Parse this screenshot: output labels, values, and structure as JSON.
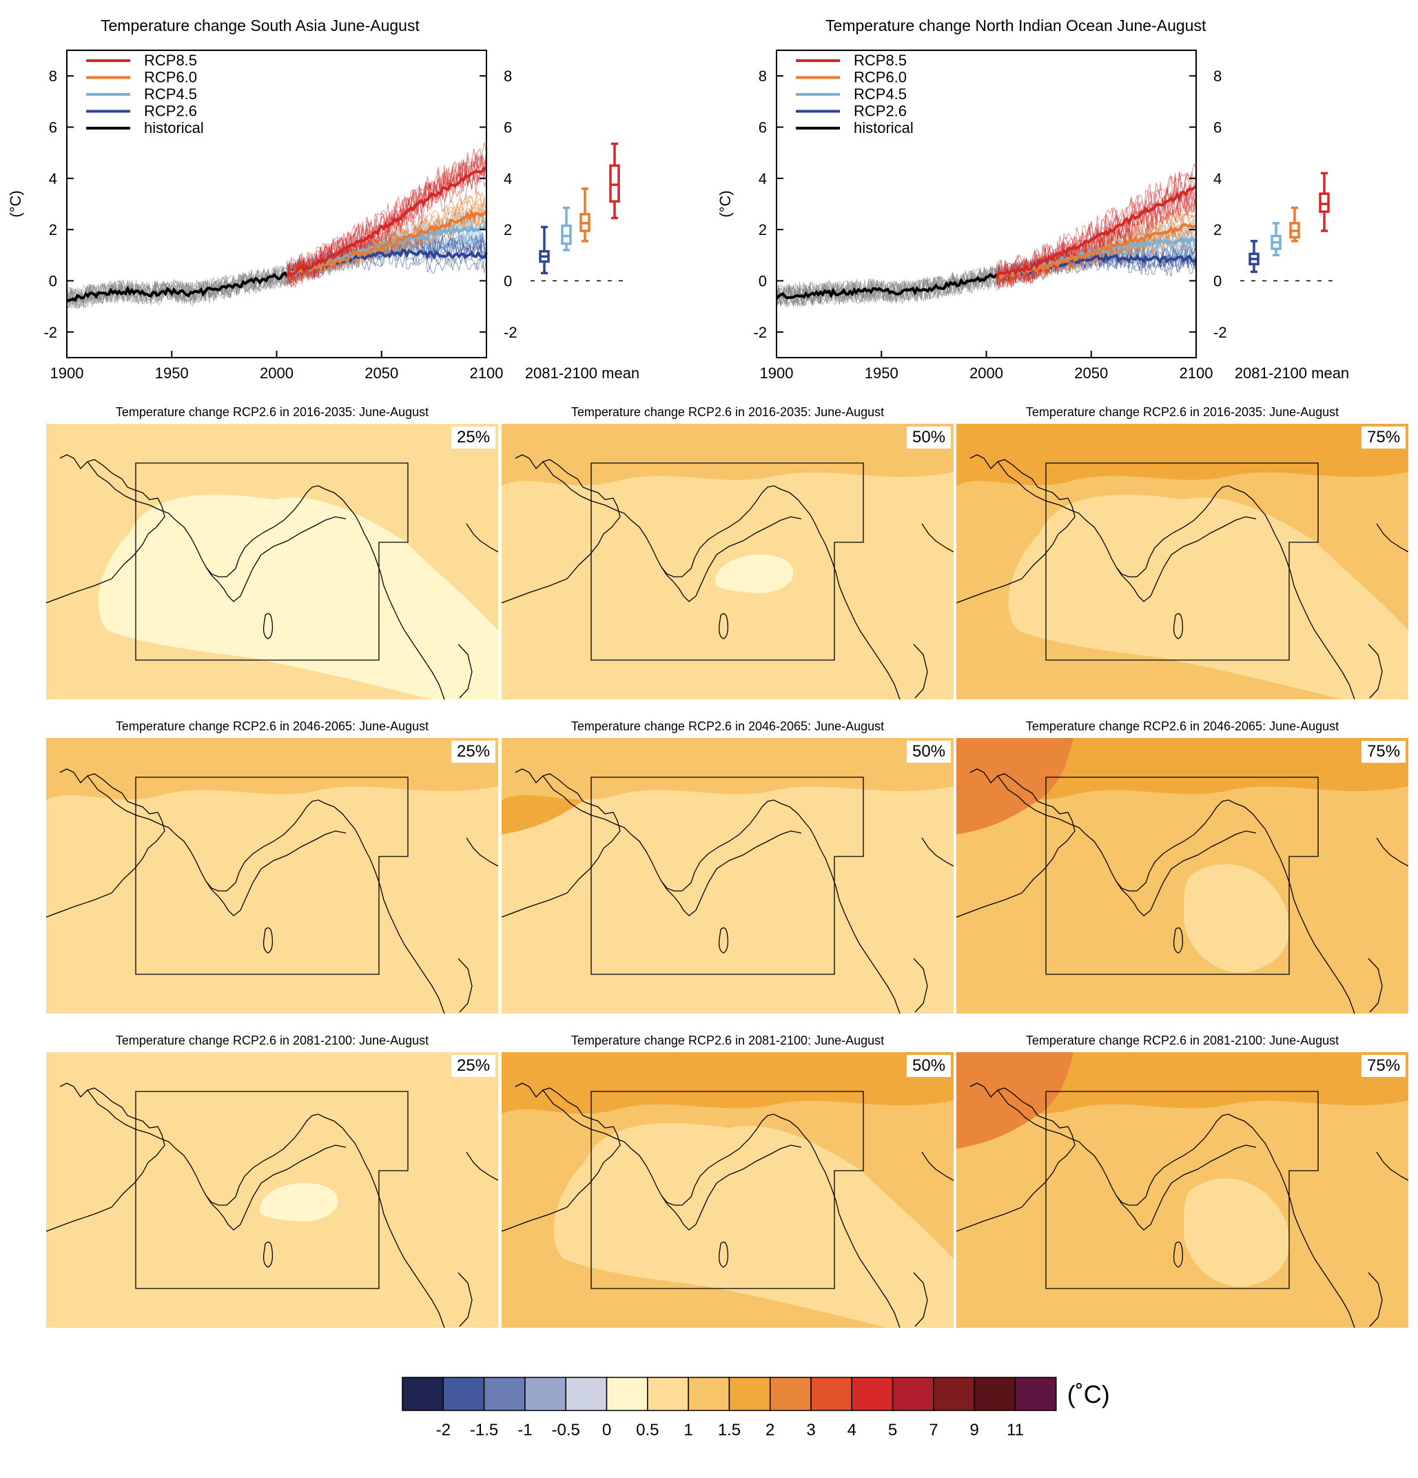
{
  "colors": {
    "rcp85": "#d62728",
    "rcp60": "#e97a2e",
    "rcp45": "#79b0d8",
    "rcp26": "#2d4593",
    "historical": "#000000",
    "hist_spread": "#7f7f7f"
  },
  "chart_data": [
    {
      "type": "line",
      "title": "Temperature change South Asia June-August",
      "ylabel": "(°C)",
      "xlim": [
        1900,
        2100
      ],
      "ylim": [
        -3,
        9
      ],
      "xticks": [
        1900,
        1950,
        2000,
        2050,
        2100
      ],
      "yticks": [
        -2,
        0,
        2,
        4,
        6,
        8
      ],
      "legend": [
        "RCP8.5",
        "RCP6.0",
        "RCP4.5",
        "RCP2.6",
        "historical"
      ],
      "legend_position": "top-left",
      "summary_label": "2081-2100 mean",
      "series": [
        {
          "name": "historical",
          "x": [
            1900,
            1910,
            1920,
            1930,
            1940,
            1950,
            1960,
            1970,
            1980,
            1990,
            2000,
            2005
          ],
          "values": [
            -0.7,
            -0.6,
            -0.45,
            -0.4,
            -0.5,
            -0.4,
            -0.5,
            -0.35,
            -0.2,
            0.0,
            0.15,
            0.25
          ]
        },
        {
          "name": "RCP2.6",
          "x": [
            2005,
            2020,
            2030,
            2040,
            2050,
            2060,
            2070,
            2080,
            2090,
            2100
          ],
          "values": [
            0.25,
            0.55,
            0.8,
            0.95,
            1.05,
            1.1,
            1.05,
            1.0,
            1.0,
            1.0
          ]
        },
        {
          "name": "RCP4.5",
          "x": [
            2005,
            2020,
            2030,
            2040,
            2050,
            2060,
            2070,
            2080,
            2090,
            2100
          ],
          "values": [
            0.25,
            0.6,
            0.85,
            1.1,
            1.35,
            1.55,
            1.75,
            1.9,
            2.0,
            2.05
          ]
        },
        {
          "name": "RCP6.0",
          "x": [
            2005,
            2020,
            2030,
            2040,
            2050,
            2060,
            2070,
            2080,
            2090,
            2100
          ],
          "values": [
            0.25,
            0.55,
            0.8,
            1.05,
            1.3,
            1.6,
            1.9,
            2.2,
            2.5,
            2.7
          ]
        },
        {
          "name": "RCP8.5",
          "x": [
            2005,
            2020,
            2030,
            2040,
            2050,
            2060,
            2070,
            2080,
            2090,
            2100
          ],
          "values": [
            0.25,
            0.7,
            1.1,
            1.55,
            2.05,
            2.55,
            3.1,
            3.6,
            4.0,
            4.35
          ]
        }
      ],
      "boxes_2081_2100": [
        {
          "name": "RCP2.6",
          "min": 0.3,
          "q1": 0.75,
          "median": 0.95,
          "q3": 1.15,
          "max": 2.1
        },
        {
          "name": "RCP4.5",
          "min": 1.2,
          "q1": 1.45,
          "median": 1.75,
          "q3": 2.15,
          "max": 2.85
        },
        {
          "name": "RCP6.0",
          "min": 1.55,
          "q1": 1.95,
          "median": 2.25,
          "q3": 2.6,
          "max": 3.6
        },
        {
          "name": "RCP8.5",
          "min": 2.45,
          "q1": 3.1,
          "median": 3.75,
          "q3": 4.5,
          "max": 5.35
        }
      ]
    },
    {
      "type": "line",
      "title": "Temperature change North Indian Ocean June-August",
      "ylabel": "(°C)",
      "xlim": [
        1900,
        2100
      ],
      "ylim": [
        -3,
        9
      ],
      "xticks": [
        1900,
        1950,
        2000,
        2050,
        2100
      ],
      "yticks": [
        -2,
        0,
        2,
        4,
        6,
        8
      ],
      "legend": [
        "RCP8.5",
        "RCP6.0",
        "RCP4.5",
        "RCP2.6",
        "historical"
      ],
      "legend_position": "top-left",
      "summary_label": "2081-2100 mean",
      "series": [
        {
          "name": "historical",
          "x": [
            1900,
            1910,
            1920,
            1930,
            1940,
            1950,
            1960,
            1970,
            1980,
            1990,
            2000,
            2005
          ],
          "values": [
            -0.6,
            -0.55,
            -0.5,
            -0.45,
            -0.4,
            -0.4,
            -0.45,
            -0.35,
            -0.2,
            -0.05,
            0.1,
            0.2
          ]
        },
        {
          "name": "RCP2.6",
          "x": [
            2005,
            2020,
            2030,
            2040,
            2050,
            2060,
            2070,
            2080,
            2090,
            2100
          ],
          "values": [
            0.2,
            0.4,
            0.6,
            0.75,
            0.85,
            0.9,
            0.85,
            0.85,
            0.85,
            0.85
          ]
        },
        {
          "name": "RCP4.5",
          "x": [
            2005,
            2020,
            2030,
            2040,
            2050,
            2060,
            2070,
            2080,
            2090,
            2100
          ],
          "values": [
            0.2,
            0.45,
            0.7,
            0.9,
            1.1,
            1.25,
            1.4,
            1.5,
            1.55,
            1.6
          ]
        },
        {
          "name": "RCP6.0",
          "x": [
            2005,
            2020,
            2030,
            2040,
            2050,
            2060,
            2070,
            2080,
            2090,
            2100
          ],
          "values": [
            0.2,
            0.4,
            0.6,
            0.85,
            1.05,
            1.3,
            1.55,
            1.8,
            2.0,
            2.2
          ]
        },
        {
          "name": "RCP8.5",
          "x": [
            2005,
            2020,
            2030,
            2040,
            2050,
            2060,
            2070,
            2080,
            2090,
            2100
          ],
          "values": [
            0.2,
            0.5,
            0.85,
            1.2,
            1.6,
            2.0,
            2.45,
            2.9,
            3.25,
            3.6
          ]
        }
      ],
      "boxes_2081_2100": [
        {
          "name": "RCP2.6",
          "min": 0.35,
          "q1": 0.65,
          "median": 0.85,
          "q3": 1.05,
          "max": 1.55
        },
        {
          "name": "RCP4.5",
          "min": 1.0,
          "q1": 1.25,
          "median": 1.5,
          "q3": 1.75,
          "max": 2.25
        },
        {
          "name": "RCP6.0",
          "min": 1.55,
          "q1": 1.7,
          "median": 1.95,
          "q3": 2.25,
          "max": 2.85
        },
        {
          "name": "RCP8.5",
          "min": 1.95,
          "q1": 2.7,
          "median": 3.0,
          "q3": 3.4,
          "max": 4.2
        }
      ]
    },
    {
      "type": "heatmap",
      "label": "colorbar",
      "unit": "(˚C)",
      "tick_labels": [
        "-2",
        "-1.5",
        "-1",
        "-0.5",
        "0",
        "0.5",
        "1",
        "1.5",
        "2",
        "3",
        "4",
        "5",
        "7",
        "9",
        "11"
      ],
      "colors": [
        "#1f2450",
        "#43599c",
        "#6b7bb3",
        "#9aa6cb",
        "#cdd3e2",
        "#fff6cc",
        "#fcdc96",
        "#f8c46a",
        "#f1a93c",
        "#ea853c",
        "#e3532b",
        "#d62a2a",
        "#b01f2d",
        "#7f1c22",
        "#5a1318",
        "#5e1640"
      ]
    }
  ],
  "maps": {
    "rows": [
      {
        "title": "Temperature change RCP2.6 in 2016-2035: June-August"
      },
      {
        "title": "Temperature change RCP2.6 in 2046-2065: June-August"
      },
      {
        "title": "Temperature change RCP2.6 in 2081-2100: June-August"
      }
    ],
    "percentiles": [
      "25%",
      "50%",
      "75%"
    ],
    "fields": [
      [
        "#fcdc96",
        "#fcdc96",
        "#f8c46a"
      ],
      [
        "#fcdc96",
        "#fcdc96",
        "#f8c46a"
      ],
      [
        "#fcdc96",
        "#f8c46a",
        "#f8c46a"
      ]
    ],
    "patches": [
      [
        [
          {
            "color": "#fff6cc",
            "shape": "big"
          }
        ],
        [
          {
            "color": "#fff6cc",
            "shape": "small"
          },
          {
            "color": "#f8c46a",
            "shape": "north"
          }
        ],
        [
          {
            "color": "#f1a93c",
            "shape": "north"
          },
          {
            "color": "#fcdc96",
            "shape": "big"
          }
        ]
      ],
      [
        [
          {
            "color": "#f8c46a",
            "shape": "north"
          }
        ],
        [
          {
            "color": "#f1a93c",
            "shape": "northwest"
          },
          {
            "color": "#f8c46a",
            "shape": "north"
          }
        ],
        [
          {
            "color": "#f1a93c",
            "shape": "north"
          },
          {
            "color": "#ea853c",
            "shape": "northwest"
          },
          {
            "color": "#fcdc96",
            "shape": "bay"
          }
        ]
      ],
      [
        [
          {
            "color": "#fff6cc",
            "shape": "small"
          }
        ],
        [
          {
            "color": "#f1a93c",
            "shape": "north"
          },
          {
            "color": "#fcdc96",
            "shape": "big"
          }
        ],
        [
          {
            "color": "#f1a93c",
            "shape": "north"
          },
          {
            "color": "#fcdc96",
            "shape": "bay"
          },
          {
            "color": "#ea853c",
            "shape": "northwest"
          }
        ]
      ]
    ]
  }
}
